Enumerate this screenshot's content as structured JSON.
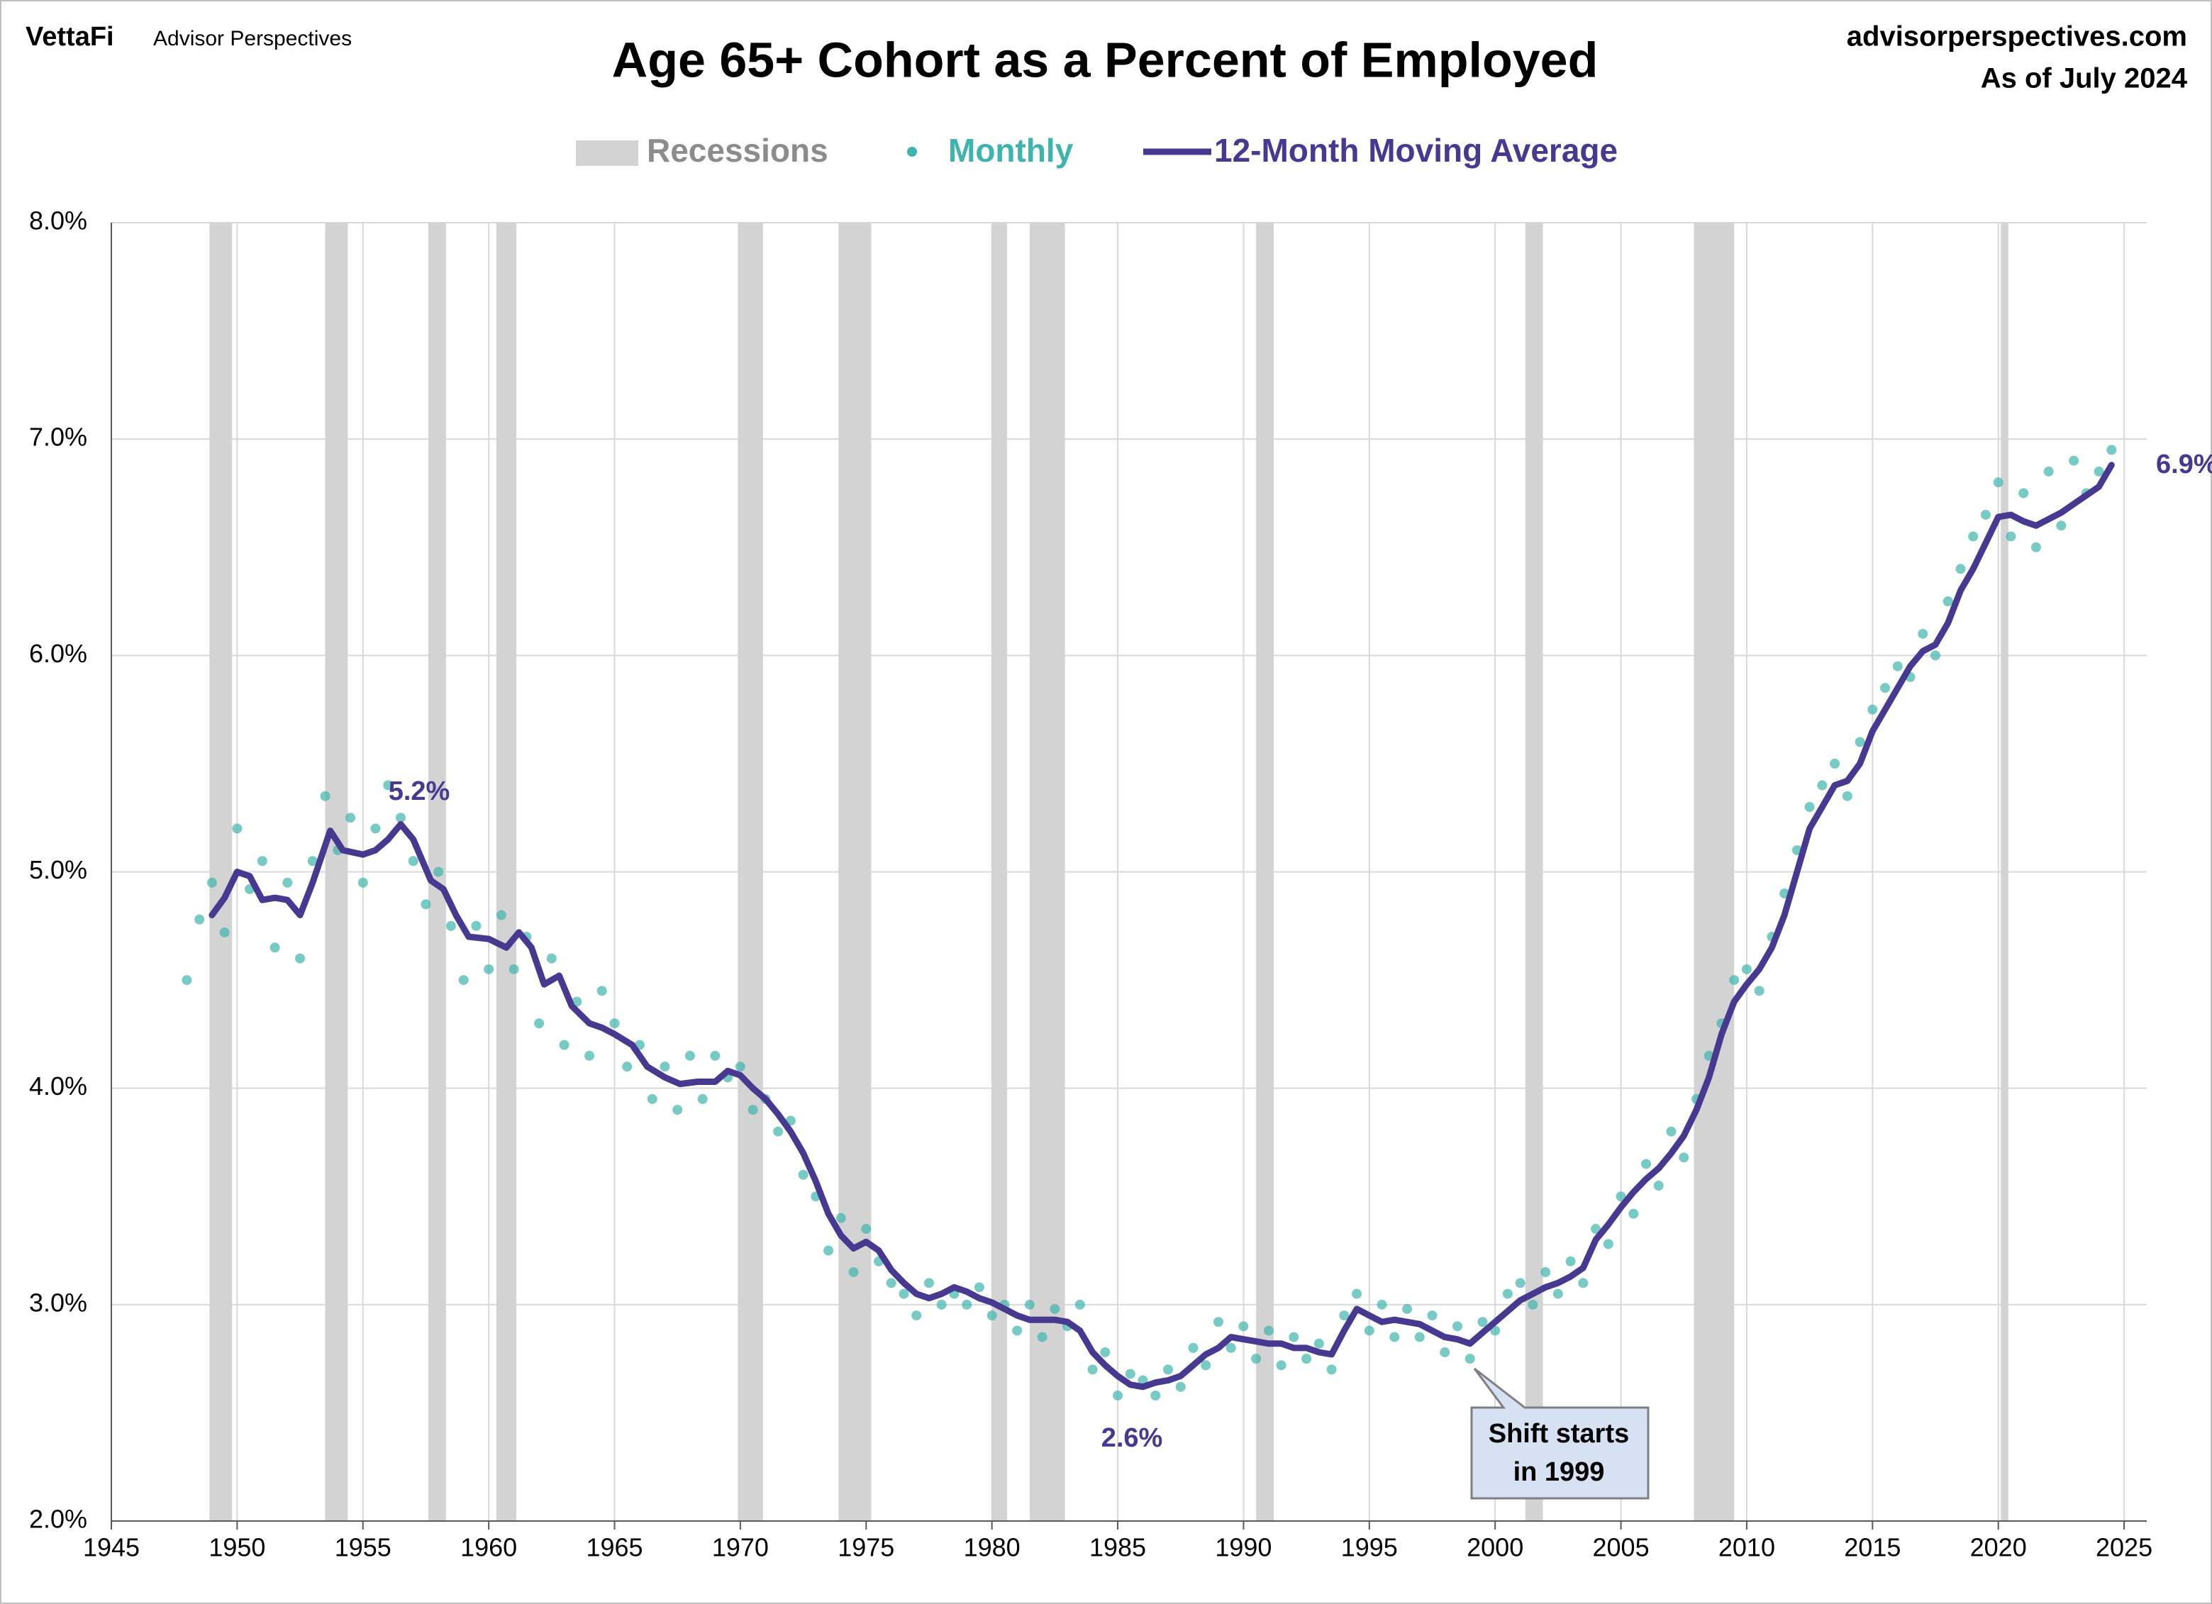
{
  "chart_data": {
    "type": "scatter_line",
    "title": "Age 65+ Cohort as a Percent of Employed",
    "brand": "VettaFi",
    "brand_sub": "Advisor Perspectives",
    "source": "advisorperspectives.com",
    "date_note": "As of July 2024",
    "recessions_label": "Recessions",
    "recession_color": "#d3d3d3",
    "recessions": [
      [
        1948.9,
        1949.8
      ],
      [
        1953.5,
        1954.4
      ],
      [
        1957.6,
        1958.3
      ],
      [
        1960.3,
        1961.1
      ],
      [
        1969.9,
        1970.9
      ],
      [
        1973.9,
        1975.2
      ],
      [
        1980.0,
        1980.6
      ],
      [
        1981.5,
        1982.9
      ],
      [
        1990.5,
        1991.2
      ],
      [
        2001.2,
        2001.9
      ],
      [
        2007.9,
        2009.5
      ],
      [
        2020.1,
        2020.4
      ]
    ],
    "series": [
      {
        "name": "Monthly",
        "color": "#3fb3ad",
        "x": [
          1948,
          1948.5,
          1949,
          1949.5,
          1950,
          1950.5,
          1951,
          1951.5,
          1952,
          1952.5,
          1953,
          1953.5,
          1954,
          1954.5,
          1955,
          1955.5,
          1956,
          1956.5,
          1957,
          1957.5,
          1958,
          1958.5,
          1959,
          1959.5,
          1960,
          1960.5,
          1961,
          1961.5,
          1962,
          1962.5,
          1963,
          1963.5,
          1964,
          1964.5,
          1965,
          1965.5,
          1966,
          1966.5,
          1967,
          1967.5,
          1968,
          1968.5,
          1969,
          1969.5,
          1970,
          1970.5,
          1971,
          1971.5,
          1972,
          1972.5,
          1973,
          1973.5,
          1974,
          1974.5,
          1975,
          1975.5,
          1976,
          1976.5,
          1977,
          1977.5,
          1978,
          1978.5,
          1979,
          1979.5,
          1980,
          1980.5,
          1981,
          1981.5,
          1982,
          1982.5,
          1983,
          1983.5,
          1984,
          1984.5,
          1985,
          1985.5,
          1986,
          1986.5,
          1987,
          1987.5,
          1988,
          1988.5,
          1989,
          1989.5,
          1990,
          1990.5,
          1991,
          1991.5,
          1992,
          1992.5,
          1993,
          1993.5,
          1994,
          1994.5,
          1995,
          1995.5,
          1996,
          1996.5,
          1997,
          1997.5,
          1998,
          1998.5,
          1999,
          1999.5,
          2000,
          2000.5,
          2001,
          2001.5,
          2002,
          2002.5,
          2003,
          2003.5,
          2004,
          2004.5,
          2005,
          2005.5,
          2006,
          2006.5,
          2007,
          2007.5,
          2008,
          2008.5,
          2009,
          2009.5,
          2010,
          2010.5,
          2011,
          2011.5,
          2012,
          2012.5,
          2013,
          2013.5,
          2014,
          2014.5,
          2015,
          2015.5,
          2016,
          2016.5,
          2017,
          2017.5,
          2018,
          2018.5,
          2019,
          2019.5,
          2020,
          2020.5,
          2021,
          2021.5,
          2022,
          2022.5,
          2023,
          2023.5,
          2024,
          2024.5
        ],
        "values": [
          4.5,
          4.78,
          4.95,
          4.72,
          5.2,
          4.92,
          5.05,
          4.65,
          4.95,
          4.6,
          5.05,
          5.35,
          5.1,
          5.25,
          4.95,
          5.2,
          5.4,
          5.25,
          5.05,
          4.85,
          5.0,
          4.75,
          4.5,
          4.75,
          4.55,
          4.8,
          4.55,
          4.7,
          4.3,
          4.6,
          4.2,
          4.4,
          4.15,
          4.45,
          4.3,
          4.1,
          4.2,
          3.95,
          4.1,
          3.9,
          4.15,
          3.95,
          4.15,
          4.05,
          4.1,
          3.9,
          3.95,
          3.8,
          3.85,
          3.6,
          3.5,
          3.25,
          3.4,
          3.15,
          3.35,
          3.2,
          3.1,
          3.05,
          2.95,
          3.1,
          3.0,
          3.05,
          3.0,
          3.08,
          2.95,
          3.0,
          2.88,
          3.0,
          2.85,
          2.98,
          2.9,
          3.0,
          2.7,
          2.78,
          2.58,
          2.68,
          2.65,
          2.58,
          2.7,
          2.62,
          2.8,
          2.72,
          2.92,
          2.8,
          2.9,
          2.75,
          2.88,
          2.72,
          2.85,
          2.75,
          2.82,
          2.7,
          2.95,
          3.05,
          2.88,
          3.0,
          2.85,
          2.98,
          2.85,
          2.95,
          2.78,
          2.9,
          2.75,
          2.92,
          2.88,
          3.05,
          3.1,
          3.0,
          3.15,
          3.05,
          3.2,
          3.1,
          3.35,
          3.28,
          3.5,
          3.42,
          3.65,
          3.55,
          3.8,
          3.68,
          3.95,
          4.15,
          4.3,
          4.5,
          4.55,
          4.45,
          4.7,
          4.9,
          5.1,
          5.3,
          5.4,
          5.5,
          5.35,
          5.6,
          5.75,
          5.85,
          5.95,
          5.9,
          6.1,
          6.0,
          6.25,
          6.4,
          6.55,
          6.65,
          6.8,
          6.55,
          6.75,
          6.5,
          6.85,
          6.6,
          6.9,
          6.75,
          6.85,
          6.95
        ]
      },
      {
        "name": "12-Month Moving Average",
        "color": "#46398f",
        "x": [
          1949,
          1949.5,
          1950,
          1950.5,
          1951,
          1951.5,
          1952,
          1952.5,
          1953,
          1953.7,
          1954.2,
          1955,
          1955.5,
          1956,
          1956.5,
          1957,
          1957.7,
          1958.2,
          1958.7,
          1959.2,
          1960,
          1960.7,
          1961.2,
          1961.7,
          1962.2,
          1962.8,
          1963.3,
          1964,
          1964.5,
          1965,
          1965.7,
          1966.3,
          1967,
          1967.6,
          1968.3,
          1969,
          1969.5,
          1970,
          1970.5,
          1971,
          1971.5,
          1972,
          1972.5,
          1973,
          1973.5,
          1974,
          1974.5,
          1975,
          1975.5,
          1976,
          1976.5,
          1977,
          1977.5,
          1978,
          1978.5,
          1979,
          1979.5,
          1980,
          1980.5,
          1981,
          1981.5,
          1982,
          1982.5,
          1983,
          1983.5,
          1984,
          1984.5,
          1985,
          1985.5,
          1986,
          1986.5,
          1987,
          1987.5,
          1988,
          1988.5,
          1989,
          1989.5,
          1990,
          1990.5,
          1991,
          1991.5,
          1992,
          1992.5,
          1993,
          1993.5,
          1994,
          1994.5,
          1995,
          1995.5,
          1996,
          1996.5,
          1997,
          1997.5,
          1998,
          1998.5,
          1999,
          1999.5,
          2000,
          2000.5,
          2001,
          2001.5,
          2002,
          2002.5,
          2003,
          2003.5,
          2004,
          2004.5,
          2005,
          2005.5,
          2006,
          2006.5,
          2007,
          2007.5,
          2008,
          2008.5,
          2009,
          2009.5,
          2010,
          2010.5,
          2011,
          2011.5,
          2012,
          2012.5,
          2013,
          2013.5,
          2014,
          2014.5,
          2015,
          2015.5,
          2016,
          2016.5,
          2017,
          2017.5,
          2018,
          2018.5,
          2019,
          2019.5,
          2020,
          2020.5,
          2021,
          2021.5,
          2022,
          2022.5,
          2023,
          2023.5,
          2024,
          2024.5
        ],
        "values": [
          4.8,
          4.88,
          5.0,
          4.98,
          4.87,
          4.88,
          4.87,
          4.8,
          4.95,
          5.19,
          5.1,
          5.08,
          5.1,
          5.15,
          5.22,
          5.15,
          4.96,
          4.92,
          4.8,
          4.7,
          4.69,
          4.65,
          4.72,
          4.65,
          4.48,
          4.52,
          4.38,
          4.3,
          4.28,
          4.25,
          4.2,
          4.1,
          4.05,
          4.02,
          4.03,
          4.03,
          4.08,
          4.06,
          4.0,
          3.95,
          3.88,
          3.8,
          3.7,
          3.57,
          3.42,
          3.32,
          3.26,
          3.29,
          3.25,
          3.16,
          3.1,
          3.05,
          3.03,
          3.05,
          3.08,
          3.06,
          3.03,
          3.01,
          2.98,
          2.95,
          2.93,
          2.93,
          2.93,
          2.92,
          2.88,
          2.78,
          2.72,
          2.67,
          2.63,
          2.62,
          2.64,
          2.65,
          2.67,
          2.72,
          2.77,
          2.8,
          2.85,
          2.84,
          2.83,
          2.82,
          2.82,
          2.8,
          2.8,
          2.78,
          2.77,
          2.88,
          2.98,
          2.95,
          2.92,
          2.93,
          2.92,
          2.91,
          2.88,
          2.85,
          2.84,
          2.82,
          2.87,
          2.92,
          2.97,
          3.02,
          3.05,
          3.08,
          3.1,
          3.13,
          3.17,
          3.3,
          3.37,
          3.45,
          3.52,
          3.58,
          3.63,
          3.7,
          3.78,
          3.9,
          4.05,
          4.25,
          4.4,
          4.48,
          4.55,
          4.65,
          4.8,
          5.0,
          5.2,
          5.3,
          5.4,
          5.42,
          5.5,
          5.65,
          5.75,
          5.85,
          5.95,
          6.02,
          6.05,
          6.15,
          6.3,
          6.4,
          6.52,
          6.64,
          6.65,
          6.62,
          6.6,
          6.63,
          6.66,
          6.7,
          6.74,
          6.78,
          6.88
        ]
      }
    ],
    "annotations": {
      "peak": "5.2%",
      "low": "2.6%",
      "last": "6.9%",
      "callout": [
        "Shift starts",
        "in 1999"
      ]
    },
    "xlim": [
      1945,
      2025.9
    ],
    "xticks": [
      1945,
      1950,
      1955,
      1960,
      1965,
      1970,
      1975,
      1980,
      1985,
      1990,
      1995,
      2000,
      2005,
      2010,
      2015,
      2020,
      2025
    ],
    "ylim": [
      2,
      8
    ],
    "yticks": [
      {
        "value": 2,
        "label": "2.0%"
      },
      {
        "value": 3,
        "label": "3.0%"
      },
      {
        "value": 4,
        "label": "4.0%"
      },
      {
        "value": 5,
        "label": "5.0%"
      },
      {
        "value": 6,
        "label": "6.0%"
      },
      {
        "value": 7,
        "label": "7.0%"
      },
      {
        "value": 8,
        "label": "8.0%"
      }
    ],
    "grid": true
  }
}
